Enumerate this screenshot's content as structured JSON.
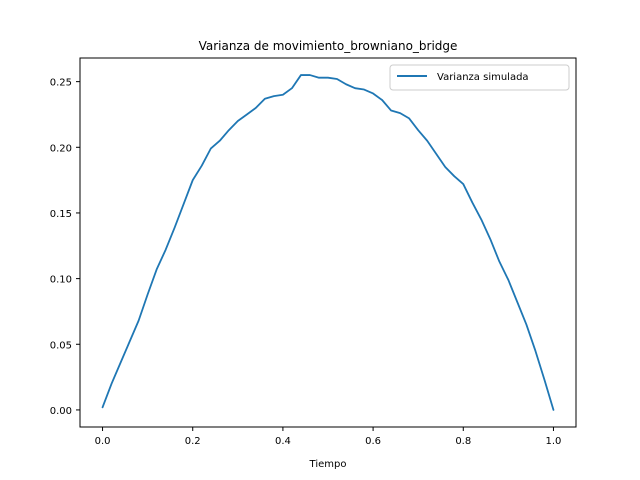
{
  "chart_data": {
    "type": "line",
    "title": "Varianza de movimiento_browniano_bridge",
    "xlabel": "Tiempo",
    "ylabel": "",
    "xlim": [
      -0.05,
      1.05
    ],
    "ylim": [
      -0.013,
      0.268
    ],
    "xticks": [
      0.0,
      0.2,
      0.4,
      0.6,
      0.8,
      1.0
    ],
    "xtick_labels": [
      "0.0",
      "0.2",
      "0.4",
      "0.6",
      "0.8",
      "1.0"
    ],
    "yticks": [
      0.0,
      0.05,
      0.1,
      0.15,
      0.2,
      0.25
    ],
    "ytick_labels": [
      "0.00",
      "0.05",
      "0.10",
      "0.15",
      "0.20",
      "0.25"
    ],
    "grid": false,
    "legend_position": "upper right",
    "series": [
      {
        "name": "Varianza simulada",
        "color": "#1f77b4",
        "x": [
          0.0,
          0.02,
          0.04,
          0.06,
          0.08,
          0.1,
          0.12,
          0.14,
          0.16,
          0.18,
          0.2,
          0.22,
          0.24,
          0.26,
          0.28,
          0.3,
          0.32,
          0.34,
          0.36,
          0.38,
          0.4,
          0.42,
          0.44,
          0.46,
          0.48,
          0.5,
          0.52,
          0.54,
          0.56,
          0.58,
          0.6,
          0.62,
          0.64,
          0.66,
          0.68,
          0.7,
          0.72,
          0.74,
          0.76,
          0.78,
          0.8,
          0.82,
          0.84,
          0.86,
          0.88,
          0.9,
          0.92,
          0.94,
          0.96,
          0.98,
          1.0
        ],
        "y": [
          0.002,
          0.02,
          0.036,
          0.052,
          0.068,
          0.088,
          0.107,
          0.122,
          0.139,
          0.157,
          0.175,
          0.186,
          0.199,
          0.205,
          0.213,
          0.22,
          0.225,
          0.23,
          0.237,
          0.239,
          0.24,
          0.245,
          0.255,
          0.255,
          0.253,
          0.253,
          0.252,
          0.248,
          0.245,
          0.244,
          0.241,
          0.236,
          0.228,
          0.226,
          0.222,
          0.213,
          0.205,
          0.195,
          0.185,
          0.178,
          0.172,
          0.158,
          0.145,
          0.13,
          0.113,
          0.099,
          0.082,
          0.065,
          0.045,
          0.023,
          0.0
        ]
      }
    ]
  }
}
